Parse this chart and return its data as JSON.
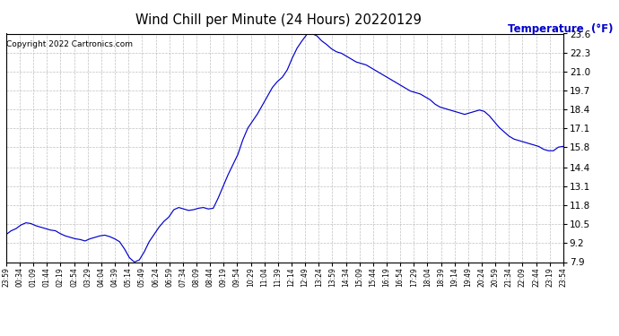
{
  "title": "Wind Chill per Minute (24 Hours) 20220129",
  "copyright": "Copyright 2022 Cartronics.com",
  "ylabel": "Temperature  (°F)",
  "ylabel_color": "#0000cc",
  "line_color": "#0000cc",
  "background_color": "#ffffff",
  "grid_color": "#b0b0b0",
  "ylim": [
    7.9,
    23.6
  ],
  "yticks": [
    7.9,
    9.2,
    10.5,
    11.8,
    13.1,
    14.4,
    15.8,
    17.1,
    18.4,
    19.7,
    21.0,
    22.3,
    23.6
  ],
  "x_tick_labels": [
    "23:59",
    "00:34",
    "01:09",
    "01:44",
    "02:19",
    "02:54",
    "03:29",
    "04:04",
    "04:39",
    "05:14",
    "05:49",
    "06:24",
    "06:59",
    "07:34",
    "08:09",
    "08:44",
    "09:19",
    "09:54",
    "10:29",
    "11:04",
    "11:39",
    "12:14",
    "12:49",
    "13:24",
    "13:59",
    "14:34",
    "15:09",
    "15:44",
    "16:19",
    "16:54",
    "17:29",
    "18:04",
    "18:39",
    "19:14",
    "19:49",
    "20:24",
    "20:59",
    "21:34",
    "22:09",
    "22:44",
    "23:19",
    "23:54"
  ],
  "data_y": [
    9.8,
    10.05,
    10.2,
    10.45,
    10.6,
    10.55,
    10.4,
    10.3,
    10.2,
    10.1,
    10.05,
    9.85,
    9.7,
    9.6,
    9.5,
    9.45,
    9.35,
    9.5,
    9.6,
    9.7,
    9.75,
    9.65,
    9.5,
    9.3,
    8.8,
    8.2,
    7.9,
    8.05,
    8.6,
    9.3,
    9.8,
    10.3,
    10.7,
    11.0,
    11.5,
    11.65,
    11.55,
    11.45,
    11.5,
    11.6,
    11.65,
    11.55,
    11.6,
    12.3,
    13.1,
    13.9,
    14.6,
    15.3,
    16.3,
    17.1,
    17.6,
    18.1,
    18.7,
    19.3,
    19.9,
    20.3,
    20.6,
    21.1,
    21.9,
    22.6,
    23.1,
    23.55,
    23.6,
    23.45,
    23.1,
    22.85,
    22.55,
    22.35,
    22.25,
    22.05,
    21.85,
    21.65,
    21.55,
    21.45,
    21.25,
    21.05,
    20.85,
    20.65,
    20.45,
    20.25,
    20.05,
    19.85,
    19.65,
    19.55,
    19.45,
    19.25,
    19.05,
    18.75,
    18.55,
    18.45,
    18.35,
    18.25,
    18.15,
    18.05,
    18.15,
    18.25,
    18.35,
    18.25,
    17.95,
    17.55,
    17.15,
    16.85,
    16.55,
    16.35,
    16.25,
    16.15,
    16.05,
    15.95,
    15.85,
    15.65,
    15.55,
    15.55,
    15.8,
    15.85
  ]
}
